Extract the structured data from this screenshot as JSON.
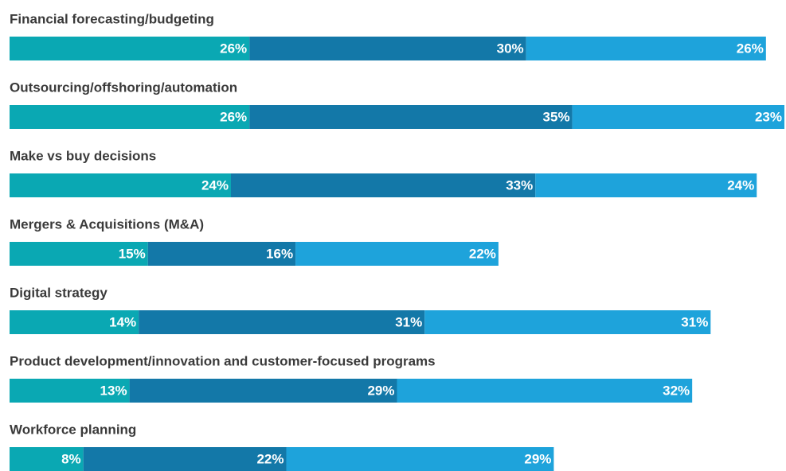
{
  "chart_data": {
    "type": "stacked-bar-horizontal",
    "categories": [
      "Financial forecasting/budgeting",
      "Outsourcing/offshoring/automation",
      "Make vs buy decisions",
      "Mergers & Acquisitions (M&A)",
      "Digital strategy",
      "Product development/innovation and customer-focused programs",
      "Workforce planning"
    ],
    "series": [
      {
        "color": "#0aa8b3",
        "values": [
          26,
          26,
          24,
          15,
          14,
          13,
          8
        ],
        "value_labels": [
          "26%",
          "26%",
          "24%",
          "15%",
          "14%",
          "13%",
          "8%"
        ]
      },
      {
        "color": "#1378a8",
        "values": [
          30,
          35,
          33,
          16,
          31,
          29,
          22
        ],
        "value_labels": [
          "30%",
          "35%",
          "33%",
          "16%",
          "31%",
          "29%",
          "22%"
        ]
      },
      {
        "color": "#1ea3db",
        "values": [
          26,
          23,
          24,
          22,
          31,
          32,
          29
        ],
        "value_labels": [
          "26%",
          "23%",
          "24%",
          "22%",
          "31%",
          "32%",
          "29%"
        ]
      }
    ]
  }
}
